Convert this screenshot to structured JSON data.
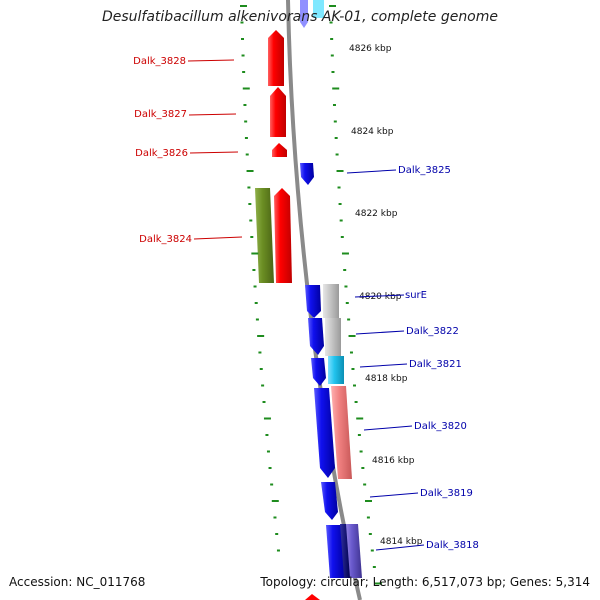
{
  "title": "Desulfatibacillum alkenivorans AK-01, complete genome",
  "footer": {
    "accession": "Accession: NC_011768",
    "topology": "Topology: circular; Length: 6,517,073 bp; Genes: 5,314"
  },
  "colors": {
    "backbone": "#8a8a8a",
    "tick": "#1e8c1e",
    "reverse_strand_label": "#cc0000",
    "forward_strand_label": "#0000aa",
    "gene_red": "#ff0000",
    "gene_blue": "#1010ee",
    "gene_olive": "#6b8e23",
    "gene_grey": "#c8c8c8",
    "gene_cyan": "#22c4ee",
    "gene_pink": "#f08080",
    "gene_purple": "#6a5acd"
  },
  "coordinate_labels": [
    "4826 kbp",
    "4824 kbp",
    "4822 kbp",
    "4820 kbp",
    "4818 kbp",
    "4816 kbp",
    "4814 kbp"
  ],
  "gene_labels": [
    {
      "id": "dalk-3828",
      "text": "Dalk_3828",
      "strand": "reverse"
    },
    {
      "id": "dalk-3827",
      "text": "Dalk_3827",
      "strand": "reverse"
    },
    {
      "id": "dalk-3826",
      "text": "Dalk_3826",
      "strand": "reverse"
    },
    {
      "id": "dalk-3824",
      "text": "Dalk_3824",
      "strand": "reverse"
    },
    {
      "id": "dalk-3825",
      "text": "Dalk_3825",
      "strand": "forward"
    },
    {
      "id": "sure",
      "text": "surE",
      "strand": "forward"
    },
    {
      "id": "dalk-3822",
      "text": "Dalk_3822",
      "strand": "forward"
    },
    {
      "id": "dalk-3821",
      "text": "Dalk_3821",
      "strand": "forward"
    },
    {
      "id": "dalk-3820",
      "text": "Dalk_3820",
      "strand": "forward"
    },
    {
      "id": "dalk-3819",
      "text": "Dalk_3819",
      "strand": "forward"
    },
    {
      "id": "dalk-3818",
      "text": "Dalk_3818",
      "strand": "forward"
    }
  ]
}
